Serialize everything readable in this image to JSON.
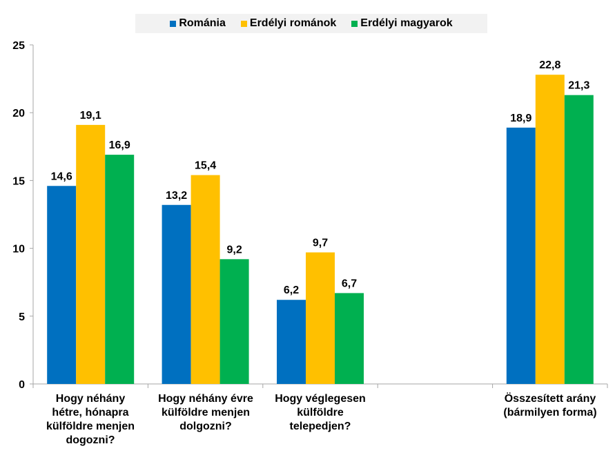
{
  "chart_data": {
    "type": "bar",
    "title": "",
    "xlabel": "",
    "ylabel": "",
    "ylim": [
      0,
      25
    ],
    "yticks": [
      0,
      5,
      10,
      15,
      20,
      25
    ],
    "grid": false,
    "legend_position": "top",
    "categories": [
      "Hogy néhány\nhétre, hónapra\nkülföldre menjen\ndogozni?",
      "Hogy néhány évre\nkülföldre menjen\ndolgozni?",
      "Hogy véglegesen\nkülföldre\ntelepedjen?",
      "",
      "Összesített arány\n(bármilyen forma)"
    ],
    "series": [
      {
        "name": "Románia",
        "color": "#0070c0",
        "values": [
          14.6,
          13.2,
          6.2,
          null,
          18.9
        ],
        "labels": [
          "14,6",
          "13,2",
          "6,2",
          "",
          "18,9"
        ]
      },
      {
        "name": "Erdélyi románok",
        "color": "#ffc000",
        "values": [
          19.1,
          15.4,
          9.7,
          null,
          22.8
        ],
        "labels": [
          "19,1",
          "15,4",
          "9,7",
          "",
          "22,8"
        ]
      },
      {
        "name": "Erdélyi magyarok",
        "color": "#00b050",
        "values": [
          16.9,
          9.2,
          6.7,
          null,
          21.3
        ],
        "labels": [
          "16,9",
          "9,2",
          "6,7",
          "",
          "21,3"
        ]
      }
    ]
  }
}
